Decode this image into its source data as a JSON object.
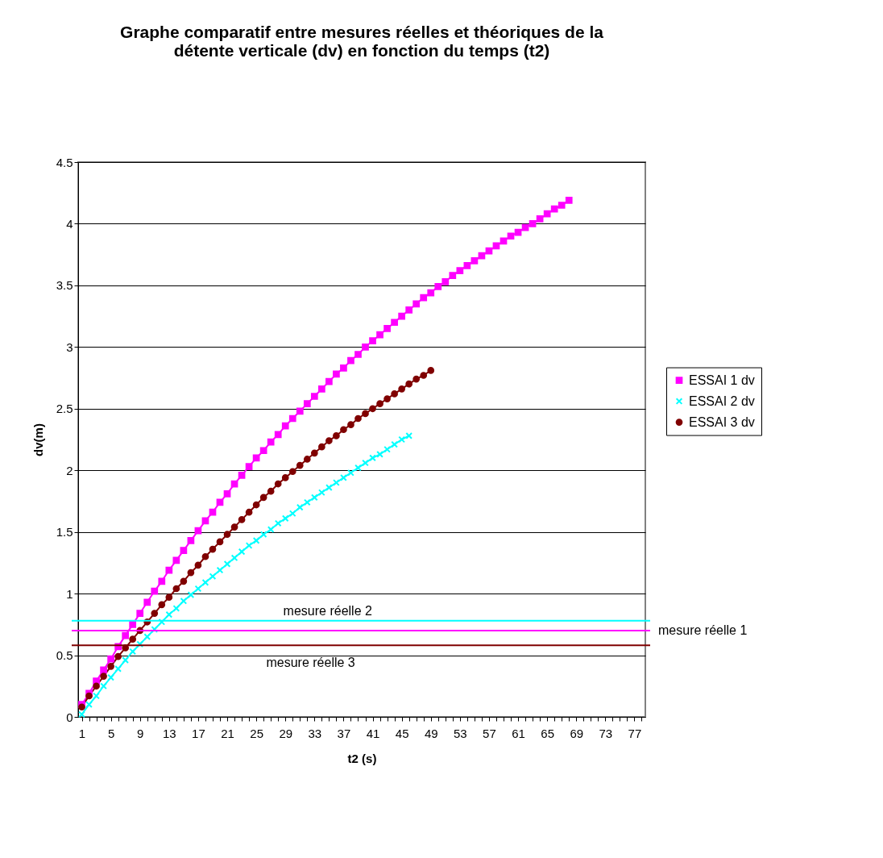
{
  "chart_data": {
    "type": "line",
    "title": "Graphe comparatif entre mesures réelles et théoriques de la détente verticale (dv) en fonction du temps (t2)",
    "xlabel": "t2 (s)",
    "ylabel": "dv(m)",
    "categories": [
      "1",
      null,
      null,
      null,
      "5",
      null,
      null,
      null,
      "9",
      null,
      null,
      null,
      "13",
      null,
      null,
      null,
      "17",
      null,
      null,
      null,
      "21",
      null,
      null,
      null,
      "25",
      null,
      null,
      null,
      "29",
      null,
      null,
      null,
      "33",
      null,
      null,
      null,
      "37",
      null,
      null,
      null,
      "41",
      null,
      null,
      null,
      "45",
      null,
      null,
      null,
      "49",
      null,
      null,
      null,
      "53",
      null,
      null,
      null,
      "57",
      null,
      null,
      null,
      "61",
      null,
      null,
      null,
      "65",
      null,
      null,
      null,
      "69",
      null,
      null,
      null,
      "73",
      null,
      null,
      null,
      "77",
      null
    ],
    "ylim": [
      0,
      4.5
    ],
    "yticks": [
      0,
      0.5,
      1,
      1.5,
      2,
      2.5,
      3,
      3.5,
      4,
      4.5
    ],
    "grid": "y",
    "legend": "right",
    "series": [
      {
        "name": "ESSAI 1 dv",
        "color": "#ff00ff",
        "marker": "square",
        "values": [
          0.1,
          0.19,
          0.29,
          0.38,
          0.47,
          0.57,
          0.66,
          0.75,
          0.84,
          0.93,
          1.02,
          1.1,
          1.19,
          1.27,
          1.35,
          1.43,
          1.51,
          1.59,
          1.66,
          1.74,
          1.81,
          1.89,
          1.96,
          2.03,
          2.1,
          2.16,
          2.23,
          2.29,
          2.36,
          2.42,
          2.48,
          2.54,
          2.6,
          2.66,
          2.72,
          2.78,
          2.83,
          2.89,
          2.94,
          3.0,
          3.05,
          3.1,
          3.15,
          3.2,
          3.25,
          3.3,
          3.35,
          3.4,
          3.44,
          3.49,
          3.53,
          3.58,
          3.62,
          3.66,
          3.7,
          3.74,
          3.78,
          3.82,
          3.86,
          3.9,
          3.93,
          3.97,
          4.0,
          4.04,
          4.08,
          4.12,
          4.15,
          4.19,
          null,
          null,
          null,
          null,
          null,
          null,
          null,
          null,
          null,
          null
        ]
      },
      {
        "name": "ESSAI 2 dv",
        "color": "#00ffff",
        "marker": "cross",
        "values": [
          0.02,
          0.1,
          0.17,
          0.25,
          0.32,
          0.39,
          0.46,
          0.53,
          0.59,
          0.65,
          0.71,
          0.77,
          0.83,
          0.88,
          0.94,
          0.99,
          1.04,
          1.09,
          1.14,
          1.19,
          1.24,
          1.29,
          1.34,
          1.39,
          1.43,
          1.48,
          1.52,
          1.57,
          1.61,
          1.65,
          1.7,
          1.74,
          1.78,
          1.82,
          1.86,
          1.9,
          1.94,
          1.98,
          2.02,
          2.06,
          2.1,
          2.13,
          2.17,
          2.21,
          2.25,
          2.28,
          null,
          null,
          null,
          null,
          null,
          null,
          null,
          null,
          null,
          null,
          null,
          null,
          null,
          null,
          null,
          null,
          null,
          null,
          null,
          null,
          null,
          null,
          null,
          null,
          null,
          null,
          null,
          null,
          null,
          null,
          null,
          null
        ]
      },
      {
        "name": "ESSAI 3 dv",
        "color": "#800000",
        "marker": "circle",
        "values": [
          0.08,
          0.17,
          0.25,
          0.33,
          0.41,
          0.49,
          0.56,
          0.63,
          0.7,
          0.77,
          0.84,
          0.91,
          0.97,
          1.04,
          1.1,
          1.17,
          1.23,
          1.3,
          1.36,
          1.42,
          1.48,
          1.54,
          1.6,
          1.66,
          1.72,
          1.78,
          1.83,
          1.89,
          1.94,
          1.99,
          2.04,
          2.09,
          2.14,
          2.19,
          2.24,
          2.28,
          2.33,
          2.37,
          2.42,
          2.46,
          2.5,
          2.54,
          2.58,
          2.62,
          2.66,
          2.7,
          2.74,
          2.77,
          2.81,
          null,
          null,
          null,
          null,
          null,
          null,
          null,
          null,
          null,
          null,
          null,
          null,
          null,
          null,
          null,
          null,
          null,
          null,
          null,
          null,
          null,
          null,
          null,
          null,
          null,
          null,
          null,
          null,
          null
        ]
      }
    ],
    "ref_lines": [
      {
        "axis": "y",
        "value": 0.7,
        "label": "mesure réelle 1",
        "color": "#ff00ff"
      },
      {
        "axis": "y",
        "value": 0.78,
        "label": "mesure réelle 2",
        "color": "#00ffff"
      },
      {
        "axis": "y",
        "value": 0.58,
        "label": "mesure réelle 3",
        "color": "#800000"
      }
    ]
  }
}
